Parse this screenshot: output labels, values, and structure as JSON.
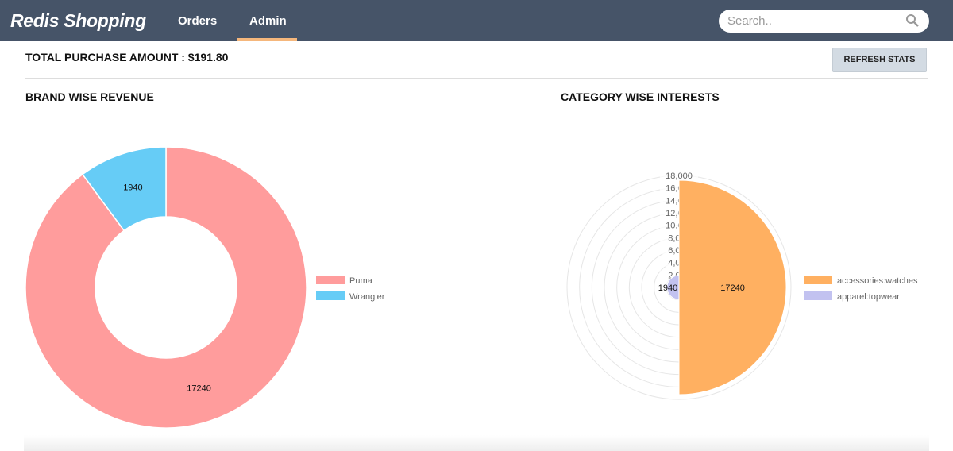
{
  "nav": {
    "brand": "Redis Shopping",
    "tabs": [
      {
        "label": "Orders"
      },
      {
        "label": "Admin",
        "active": true
      }
    ],
    "search_placeholder": "Search..",
    "accent": "#f5b77c"
  },
  "summary": {
    "total_label": "TOTAL PURCHASE AMOUNT : $191.80",
    "refresh_label": "REFRESH STATS"
  },
  "chart_data": [
    {
      "type": "pie",
      "variant": "doughnut",
      "title": "BRAND WISE REVENUE",
      "categories": [
        "Puma",
        "Wrangler"
      ],
      "values": [
        17240,
        1940
      ],
      "colors": [
        "#ff9c9c",
        "#66ccf6"
      ],
      "legend": "right"
    },
    {
      "type": "polarArea",
      "title": "CATEGORY WISE INTERESTS",
      "categories": [
        "accessories:watches",
        "apparel:topwear"
      ],
      "values": [
        17240,
        1940
      ],
      "colors": [
        "#ffb061",
        "#c2c2f0"
      ],
      "rlim": [
        0,
        18000
      ],
      "ticks": [
        "2,000",
        "4,000",
        "6,000",
        "8,000",
        "10,000",
        "12,000",
        "14,000",
        "16,000",
        "18,000"
      ],
      "legend": "right"
    }
  ]
}
